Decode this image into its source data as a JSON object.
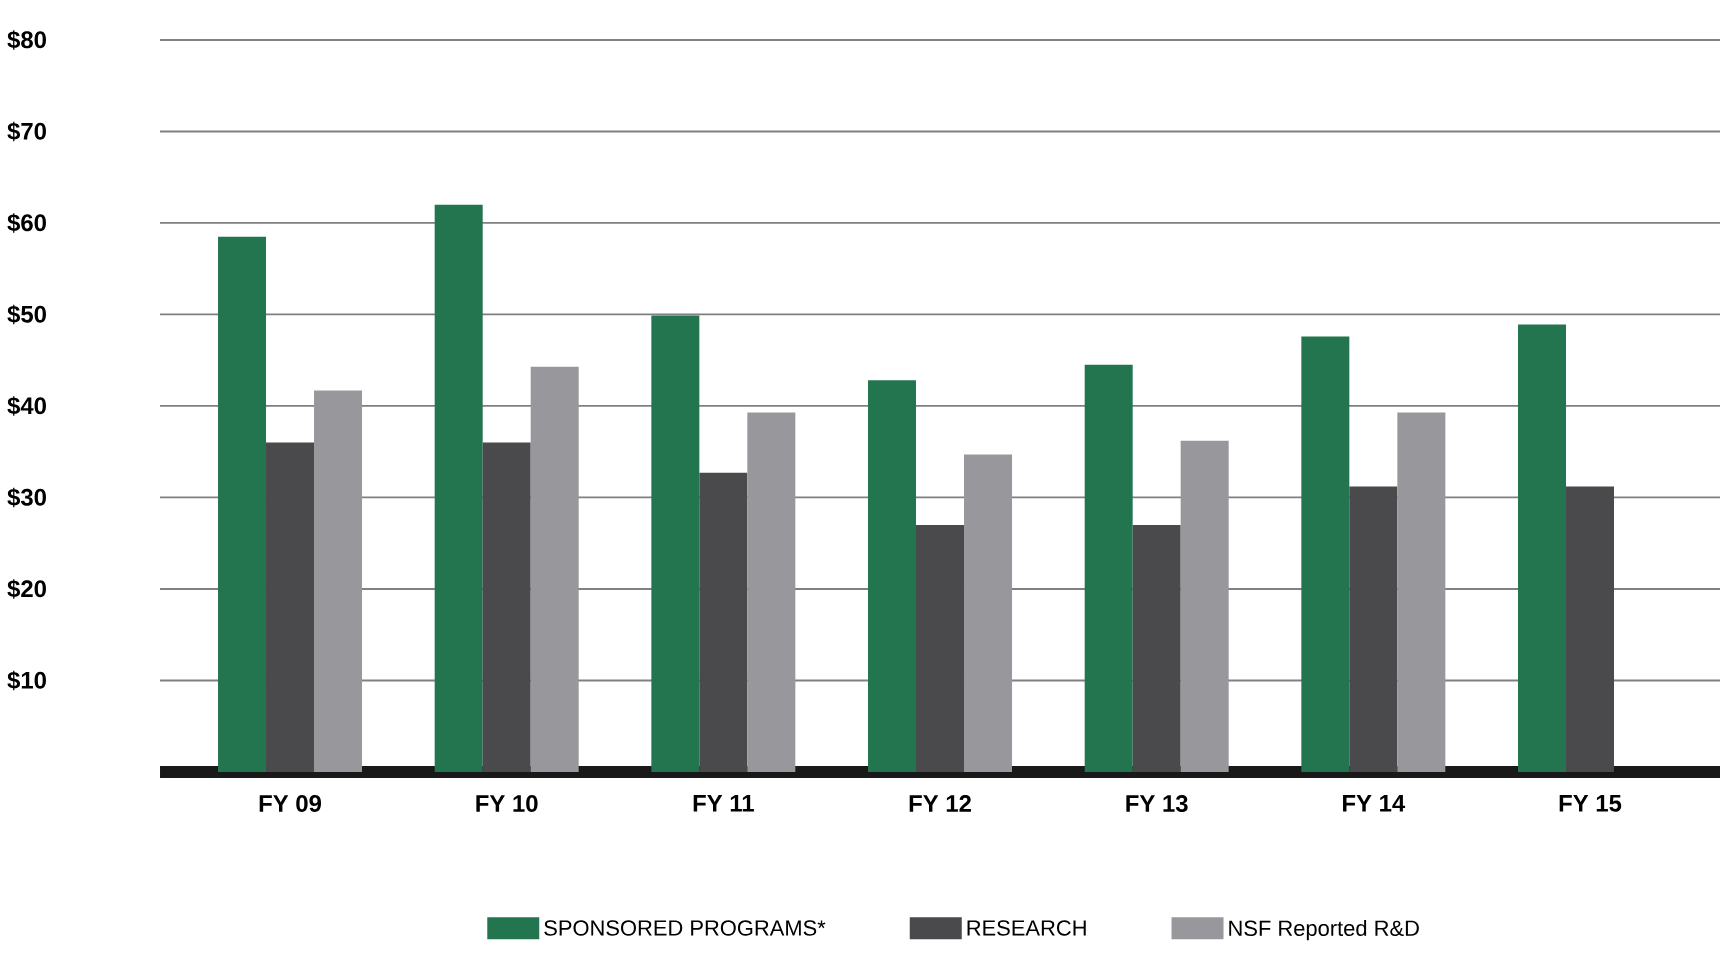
{
  "chart_data": {
    "type": "bar",
    "categories": [
      "FY 09",
      "FY 10",
      "FY 11",
      "FY 12",
      "FY 13",
      "FY 14",
      "FY 15"
    ],
    "series": [
      {
        "name": "SPONSORED PROGRAMS*",
        "color": "#237550",
        "values": [
          58.5,
          62.0,
          49.9,
          42.8,
          44.5,
          47.6,
          48.9
        ]
      },
      {
        "name": "RESEARCH",
        "color": "#4a4a4c",
        "values": [
          36.0,
          36.0,
          32.7,
          27.0,
          27.0,
          31.2,
          31.2
        ]
      },
      {
        "name": "NSF Reported R&D",
        "color": "#98989c",
        "values": [
          41.7,
          44.3,
          39.3,
          34.7,
          36.2,
          39.3,
          null
        ]
      }
    ],
    "ylim": [
      0,
      80
    ],
    "yticks": [
      {
        "value": 10,
        "label": "$10"
      },
      {
        "value": 20,
        "label": "$20"
      },
      {
        "value": 30,
        "label": "$30"
      },
      {
        "value": 40,
        "label": "$40"
      },
      {
        "value": 50,
        "label": "$50"
      },
      {
        "value": 60,
        "label": "$60"
      },
      {
        "value": 70,
        "label": "$70"
      },
      {
        "value": 80,
        "label": "$80"
      }
    ],
    "grid": "y",
    "legend": "bottom"
  }
}
